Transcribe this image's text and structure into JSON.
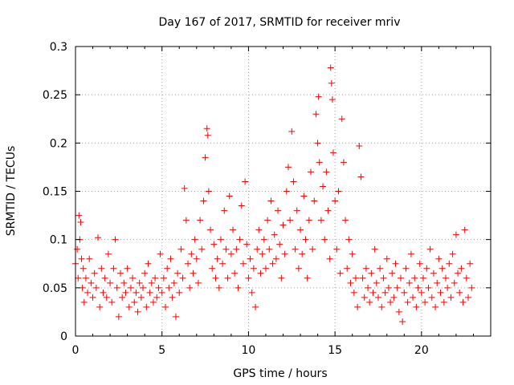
{
  "chart_data": {
    "type": "scatter",
    "title": "Day 167 of 2017, SRMTID for receiver mriv",
    "xlabel": "GPS time / hours",
    "ylabel": "SRMTID / TECUs",
    "xlim": [
      0,
      24
    ],
    "ylim": [
      0,
      0.3
    ],
    "x_ticks": [
      "0",
      "5",
      "10",
      "15",
      "20"
    ],
    "y_ticks": [
      "0",
      "0.05",
      "0.1",
      "0.15",
      "0.2",
      "0.25",
      "0.3"
    ],
    "grid": true,
    "marker": "+",
    "series": [
      {
        "name": "SRMTID",
        "color": "#ff0000",
        "points": [
          [
            0.0,
            0.075
          ],
          [
            0.1,
            0.09
          ],
          [
            0.15,
            0.06
          ],
          [
            0.2,
            0.125
          ],
          [
            0.25,
            0.1
          ],
          [
            0.3,
            0.118
          ],
          [
            0.35,
            0.08
          ],
          [
            0.4,
            0.05
          ],
          [
            0.45,
            0.07
          ],
          [
            0.5,
            0.035
          ],
          [
            0.6,
            0.06
          ],
          [
            0.7,
            0.045
          ],
          [
            0.8,
            0.08
          ],
          [
            0.9,
            0.055
          ],
          [
            1.0,
            0.04
          ],
          [
            1.1,
            0.065
          ],
          [
            1.2,
            0.05
          ],
          [
            1.3,
            0.102
          ],
          [
            1.4,
            0.03
          ],
          [
            1.5,
            0.07
          ],
          [
            1.6,
            0.045
          ],
          [
            1.7,
            0.06
          ],
          [
            1.8,
            0.04
          ],
          [
            1.9,
            0.085
          ],
          [
            2.0,
            0.055
          ],
          [
            2.1,
            0.035
          ],
          [
            2.2,
            0.07
          ],
          [
            2.3,
            0.1
          ],
          [
            2.4,
            0.05
          ],
          [
            2.5,
            0.02
          ],
          [
            2.6,
            0.065
          ],
          [
            2.7,
            0.04
          ],
          [
            2.8,
            0.055
          ],
          [
            2.9,
            0.045
          ],
          [
            3.0,
            0.07
          ],
          [
            3.1,
            0.03
          ],
          [
            3.2,
            0.05
          ],
          [
            3.3,
            0.06
          ],
          [
            3.4,
            0.035
          ],
          [
            3.5,
            0.045
          ],
          [
            3.6,
            0.025
          ],
          [
            3.7,
            0.055
          ],
          [
            3.8,
            0.04
          ],
          [
            3.9,
            0.05
          ],
          [
            4.0,
            0.065
          ],
          [
            4.1,
            0.03
          ],
          [
            4.2,
            0.075
          ],
          [
            4.3,
            0.045
          ],
          [
            4.4,
            0.055
          ],
          [
            4.5,
            0.035
          ],
          [
            4.6,
            0.06
          ],
          [
            4.7,
            0.04
          ],
          [
            4.8,
            0.05
          ],
          [
            4.9,
            0.085
          ],
          [
            5.0,
            0.045
          ],
          [
            5.1,
            0.06
          ],
          [
            5.2,
            0.03
          ],
          [
            5.3,
            0.07
          ],
          [
            5.4,
            0.05
          ],
          [
            5.5,
            0.08
          ],
          [
            5.6,
            0.04
          ],
          [
            5.7,
            0.055
          ],
          [
            5.8,
            0.02
          ],
          [
            5.9,
            0.065
          ],
          [
            6.0,
            0.045
          ],
          [
            6.1,
            0.09
          ],
          [
            6.2,
            0.06
          ],
          [
            6.3,
            0.153
          ],
          [
            6.4,
            0.12
          ],
          [
            6.5,
            0.075
          ],
          [
            6.6,
            0.05
          ],
          [
            6.7,
            0.085
          ],
          [
            6.8,
            0.065
          ],
          [
            6.9,
            0.1
          ],
          [
            7.0,
            0.08
          ],
          [
            7.1,
            0.055
          ],
          [
            7.2,
            0.12
          ],
          [
            7.3,
            0.09
          ],
          [
            7.4,
            0.14
          ],
          [
            7.5,
            0.185
          ],
          [
            7.6,
            0.215
          ],
          [
            7.65,
            0.208
          ],
          [
            7.7,
            0.15
          ],
          [
            7.8,
            0.11
          ],
          [
            7.9,
            0.07
          ],
          [
            8.0,
            0.095
          ],
          [
            8.1,
            0.06
          ],
          [
            8.2,
            0.08
          ],
          [
            8.3,
            0.05
          ],
          [
            8.4,
            0.1
          ],
          [
            8.5,
            0.075
          ],
          [
            8.6,
            0.13
          ],
          [
            8.7,
            0.09
          ],
          [
            8.8,
            0.06
          ],
          [
            8.9,
            0.145
          ],
          [
            9.0,
            0.085
          ],
          [
            9.1,
            0.11
          ],
          [
            9.2,
            0.065
          ],
          [
            9.3,
            0.09
          ],
          [
            9.4,
            0.05
          ],
          [
            9.5,
            0.1
          ],
          [
            9.6,
            0.135
          ],
          [
            9.7,
            0.075
          ],
          [
            9.8,
            0.16
          ],
          [
            9.9,
            0.095
          ],
          [
            10.0,
            0.06
          ],
          [
            10.1,
            0.08
          ],
          [
            10.2,
            0.045
          ],
          [
            10.3,
            0.07
          ],
          [
            10.4,
            0.03
          ],
          [
            10.5,
            0.09
          ],
          [
            10.6,
            0.11
          ],
          [
            10.7,
            0.065
          ],
          [
            10.8,
            0.085
          ],
          [
            10.9,
            0.1
          ],
          [
            11.0,
            0.07
          ],
          [
            11.1,
            0.12
          ],
          [
            11.2,
            0.09
          ],
          [
            11.3,
            0.14
          ],
          [
            11.4,
            0.075
          ],
          [
            11.5,
            0.105
          ],
          [
            11.6,
            0.08
          ],
          [
            11.7,
            0.13
          ],
          [
            11.8,
            0.095
          ],
          [
            11.9,
            0.06
          ],
          [
            12.0,
            0.115
          ],
          [
            12.1,
            0.085
          ],
          [
            12.2,
            0.15
          ],
          [
            12.3,
            0.175
          ],
          [
            12.4,
            0.12
          ],
          [
            12.5,
            0.212
          ],
          [
            12.6,
            0.16
          ],
          [
            12.7,
            0.09
          ],
          [
            12.8,
            0.13
          ],
          [
            12.9,
            0.07
          ],
          [
            13.0,
            0.11
          ],
          [
            13.1,
            0.085
          ],
          [
            13.2,
            0.145
          ],
          [
            13.3,
            0.1
          ],
          [
            13.4,
            0.06
          ],
          [
            13.5,
            0.12
          ],
          [
            13.6,
            0.17
          ],
          [
            13.7,
            0.09
          ],
          [
            13.8,
            0.14
          ],
          [
            13.9,
            0.23
          ],
          [
            14.0,
            0.2
          ],
          [
            14.05,
            0.248
          ],
          [
            14.1,
            0.18
          ],
          [
            14.2,
            0.12
          ],
          [
            14.3,
            0.155
          ],
          [
            14.4,
            0.1
          ],
          [
            14.5,
            0.17
          ],
          [
            14.6,
            0.13
          ],
          [
            14.7,
            0.08
          ],
          [
            14.75,
            0.278
          ],
          [
            14.8,
            0.262
          ],
          [
            14.85,
            0.245
          ],
          [
            14.9,
            0.19
          ],
          [
            15.0,
            0.14
          ],
          [
            15.1,
            0.09
          ],
          [
            15.2,
            0.15
          ],
          [
            15.3,
            0.065
          ],
          [
            15.4,
            0.225
          ],
          [
            15.5,
            0.18
          ],
          [
            15.6,
            0.12
          ],
          [
            15.7,
            0.07
          ],
          [
            15.8,
            0.1
          ],
          [
            15.9,
            0.055
          ],
          [
            16.0,
            0.085
          ],
          [
            16.1,
            0.045
          ],
          [
            16.2,
            0.06
          ],
          [
            16.3,
            0.03
          ],
          [
            16.4,
            0.197
          ],
          [
            16.5,
            0.165
          ],
          [
            16.6,
            0.06
          ],
          [
            16.7,
            0.04
          ],
          [
            16.8,
            0.07
          ],
          [
            16.9,
            0.05
          ],
          [
            17.0,
            0.035
          ],
          [
            17.1,
            0.065
          ],
          [
            17.2,
            0.045
          ],
          [
            17.3,
            0.09
          ],
          [
            17.4,
            0.055
          ],
          [
            17.5,
            0.04
          ],
          [
            17.6,
            0.07
          ],
          [
            17.7,
            0.03
          ],
          [
            17.8,
            0.06
          ],
          [
            17.9,
            0.045
          ],
          [
            18.0,
            0.08
          ],
          [
            18.1,
            0.05
          ],
          [
            18.2,
            0.035
          ],
          [
            18.3,
            0.065
          ],
          [
            18.4,
            0.04
          ],
          [
            18.5,
            0.075
          ],
          [
            18.6,
            0.05
          ],
          [
            18.7,
            0.025
          ],
          [
            18.8,
            0.06
          ],
          [
            18.9,
            0.015
          ],
          [
            19.0,
            0.045
          ],
          [
            19.1,
            0.07
          ],
          [
            19.2,
            0.035
          ],
          [
            19.3,
            0.055
          ],
          [
            19.4,
            0.085
          ],
          [
            19.5,
            0.04
          ],
          [
            19.6,
            0.06
          ],
          [
            19.7,
            0.03
          ],
          [
            19.8,
            0.05
          ],
          [
            19.9,
            0.075
          ],
          [
            20.0,
            0.045
          ],
          [
            20.1,
            0.06
          ],
          [
            20.2,
            0.035
          ],
          [
            20.3,
            0.07
          ],
          [
            20.4,
            0.05
          ],
          [
            20.5,
            0.09
          ],
          [
            20.6,
            0.04
          ],
          [
            20.7,
            0.065
          ],
          [
            20.8,
            0.03
          ],
          [
            20.9,
            0.055
          ],
          [
            21.0,
            0.08
          ],
          [
            21.1,
            0.045
          ],
          [
            21.2,
            0.07
          ],
          [
            21.3,
            0.035
          ],
          [
            21.4,
            0.06
          ],
          [
            21.5,
            0.05
          ],
          [
            21.6,
            0.075
          ],
          [
            21.7,
            0.04
          ],
          [
            21.8,
            0.085
          ],
          [
            21.9,
            0.055
          ],
          [
            22.0,
            0.105
          ],
          [
            22.1,
            0.065
          ],
          [
            22.2,
            0.045
          ],
          [
            22.3,
            0.07
          ],
          [
            22.4,
            0.035
          ],
          [
            22.5,
            0.11
          ],
          [
            22.6,
            0.06
          ],
          [
            22.7,
            0.04
          ],
          [
            22.8,
            0.075
          ],
          [
            22.9,
            0.05
          ]
        ]
      }
    ]
  }
}
